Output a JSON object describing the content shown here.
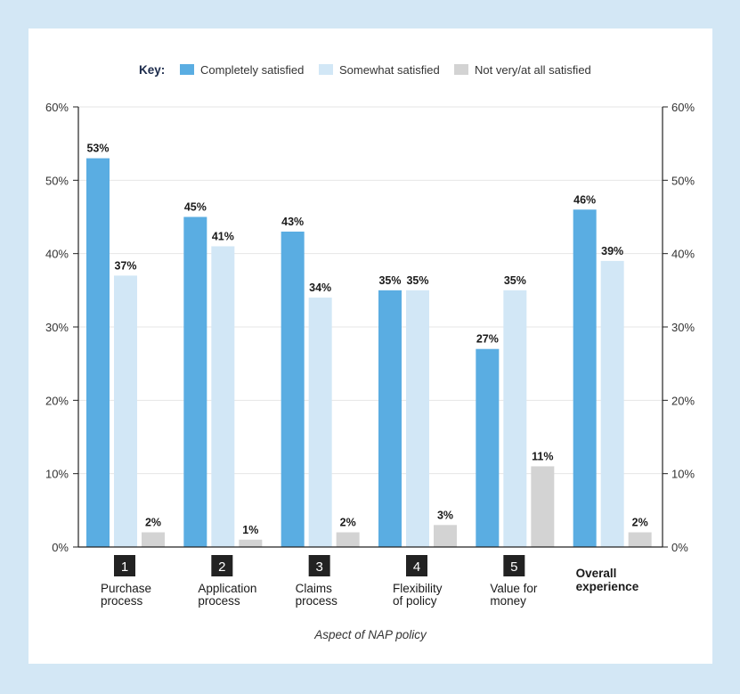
{
  "chart_data": {
    "type": "bar",
    "key_label": "Key:",
    "legend_position": "top",
    "xlabel": "Aspect of NAP policy",
    "ylim": [
      0,
      60
    ],
    "yticks": [
      "0%",
      "10%",
      "20%",
      "30%",
      "40%",
      "50%",
      "60%"
    ],
    "ytick_values": [
      0,
      10,
      20,
      30,
      40,
      50,
      60
    ],
    "grid": true,
    "categories": [
      {
        "number": "1",
        "label_lines": [
          "Purchase",
          "process"
        ],
        "bold": false
      },
      {
        "number": "2",
        "label_lines": [
          "Application",
          "process"
        ],
        "bold": false
      },
      {
        "number": "3",
        "label_lines": [
          "Claims",
          "process"
        ],
        "bold": false
      },
      {
        "number": "4",
        "label_lines": [
          "Flexibility",
          "of policy"
        ],
        "bold": false
      },
      {
        "number": "5",
        "label_lines": [
          "Value for",
          "money"
        ],
        "bold": false
      },
      {
        "number": "",
        "label_lines": [
          "Overall",
          "experience"
        ],
        "bold": true
      }
    ],
    "series": [
      {
        "name": "Completely satisfied",
        "color": "#5aade2",
        "values": [
          53,
          45,
          43,
          35,
          27,
          46
        ],
        "labels": [
          "53%",
          "45%",
          "43%",
          "35%",
          "27%",
          "46%"
        ]
      },
      {
        "name": "Somewhat satisfied",
        "color": "#d2e7f6",
        "values": [
          37,
          41,
          34,
          35,
          35,
          39
        ],
        "labels": [
          "37%",
          "41%",
          "34%",
          "35%",
          "35%",
          "39%"
        ]
      },
      {
        "name": "Not very/at all satisfied",
        "color": "#d3d3d3",
        "values": [
          2,
          1,
          2,
          3,
          11,
          2
        ],
        "labels": [
          "2%",
          "1%",
          "2%",
          "3%",
          "11%",
          "2%"
        ]
      }
    ]
  }
}
